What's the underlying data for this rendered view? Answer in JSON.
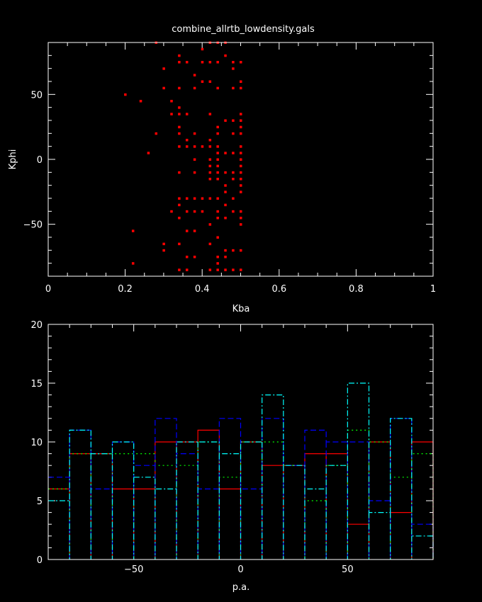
{
  "chart_data": [
    {
      "type": "scatter",
      "title": "combine_allrtb_lowdensity.gals",
      "xlabel": "Kba",
      "ylabel": "Kphi",
      "xlim": [
        0,
        1
      ],
      "ylim": [
        -90,
        90
      ],
      "xticks": [
        0,
        0.2,
        0.4,
        0.6,
        0.8,
        1
      ],
      "xtick_labels": [
        "0",
        "0.2",
        "0.4",
        "0.6",
        "0.8",
        "1"
      ],
      "yticks": [
        -50,
        0,
        50
      ],
      "ytick_labels": [
        "−50",
        "0",
        "50"
      ],
      "color": "#ff0000",
      "points": [
        [
          0.2,
          50
        ],
        [
          0.22,
          -55
        ],
        [
          0.22,
          -80
        ],
        [
          0.24,
          45
        ],
        [
          0.26,
          5
        ],
        [
          0.28,
          90
        ],
        [
          0.28,
          20
        ],
        [
          0.3,
          70
        ],
        [
          0.3,
          55
        ],
        [
          0.3,
          -65
        ],
        [
          0.3,
          -70
        ],
        [
          0.32,
          45
        ],
        [
          0.32,
          35
        ],
        [
          0.32,
          -40
        ],
        [
          0.34,
          80
        ],
        [
          0.34,
          75
        ],
        [
          0.34,
          55
        ],
        [
          0.34,
          40
        ],
        [
          0.34,
          35
        ],
        [
          0.34,
          25
        ],
        [
          0.34,
          20
        ],
        [
          0.34,
          10
        ],
        [
          0.34,
          -10
        ],
        [
          0.34,
          -30
        ],
        [
          0.34,
          -35
        ],
        [
          0.34,
          -45
        ],
        [
          0.34,
          -65
        ],
        [
          0.34,
          -85
        ],
        [
          0.36,
          75
        ],
        [
          0.36,
          35
        ],
        [
          0.36,
          15
        ],
        [
          0.36,
          10
        ],
        [
          0.36,
          -30
        ],
        [
          0.36,
          -40
        ],
        [
          0.36,
          -55
        ],
        [
          0.36,
          -75
        ],
        [
          0.36,
          -85
        ],
        [
          0.38,
          65
        ],
        [
          0.38,
          55
        ],
        [
          0.38,
          20
        ],
        [
          0.38,
          10
        ],
        [
          0.38,
          0
        ],
        [
          0.38,
          -10
        ],
        [
          0.38,
          -30
        ],
        [
          0.38,
          -40
        ],
        [
          0.38,
          -55
        ],
        [
          0.38,
          -75
        ],
        [
          0.4,
          85
        ],
        [
          0.4,
          75
        ],
        [
          0.4,
          60
        ],
        [
          0.4,
          10
        ],
        [
          0.4,
          -30
        ],
        [
          0.4,
          -40
        ],
        [
          0.42,
          90
        ],
        [
          0.42,
          75
        ],
        [
          0.42,
          60
        ],
        [
          0.42,
          35
        ],
        [
          0.42,
          15
        ],
        [
          0.42,
          10
        ],
        [
          0.42,
          0
        ],
        [
          0.42,
          -5
        ],
        [
          0.42,
          -10
        ],
        [
          0.42,
          -15
        ],
        [
          0.42,
          -30
        ],
        [
          0.42,
          -50
        ],
        [
          0.42,
          -65
        ],
        [
          0.42,
          -85
        ],
        [
          0.44,
          90
        ],
        [
          0.44,
          75
        ],
        [
          0.44,
          55
        ],
        [
          0.44,
          25
        ],
        [
          0.44,
          20
        ],
        [
          0.44,
          10
        ],
        [
          0.44,
          5
        ],
        [
          0.44,
          0
        ],
        [
          0.44,
          -5
        ],
        [
          0.44,
          -10
        ],
        [
          0.44,
          -15
        ],
        [
          0.44,
          -30
        ],
        [
          0.44,
          -40
        ],
        [
          0.44,
          -45
        ],
        [
          0.44,
          -60
        ],
        [
          0.44,
          -75
        ],
        [
          0.44,
          -80
        ],
        [
          0.44,
          -85
        ],
        [
          0.46,
          90
        ],
        [
          0.46,
          80
        ],
        [
          0.46,
          30
        ],
        [
          0.46,
          5
        ],
        [
          0.46,
          -10
        ],
        [
          0.46,
          -20
        ],
        [
          0.46,
          -25
        ],
        [
          0.46,
          -35
        ],
        [
          0.46,
          -45
        ],
        [
          0.46,
          -70
        ],
        [
          0.46,
          -75
        ],
        [
          0.46,
          -85
        ],
        [
          0.48,
          75
        ],
        [
          0.48,
          70
        ],
        [
          0.48,
          55
        ],
        [
          0.48,
          30
        ],
        [
          0.48,
          20
        ],
        [
          0.48,
          5
        ],
        [
          0.48,
          -10
        ],
        [
          0.48,
          -15
        ],
        [
          0.48,
          -30
        ],
        [
          0.48,
          -40
        ],
        [
          0.48,
          -70
        ],
        [
          0.48,
          -85
        ],
        [
          0.5,
          75
        ],
        [
          0.5,
          60
        ],
        [
          0.5,
          55
        ],
        [
          0.5,
          35
        ],
        [
          0.5,
          30
        ],
        [
          0.5,
          25
        ],
        [
          0.5,
          20
        ],
        [
          0.5,
          10
        ],
        [
          0.5,
          5
        ],
        [
          0.5,
          0
        ],
        [
          0.5,
          -5
        ],
        [
          0.5,
          -10
        ],
        [
          0.5,
          -15
        ],
        [
          0.5,
          -20
        ],
        [
          0.5,
          -25
        ],
        [
          0.5,
          -40
        ],
        [
          0.5,
          -45
        ],
        [
          0.5,
          -50
        ],
        [
          0.5,
          -70
        ],
        [
          0.5,
          -85
        ]
      ]
    },
    {
      "type": "histogram",
      "xlabel": "p.a.",
      "ylabel": "",
      "xlim": [
        -90,
        90
      ],
      "ylim": [
        0,
        20
      ],
      "xticks": [
        -50,
        0,
        50
      ],
      "xtick_labels": [
        "−50",
        "0",
        "50"
      ],
      "yticks": [
        0,
        5,
        10,
        15,
        20
      ],
      "ytick_labels": [
        "0",
        "5",
        "10",
        "15",
        "20"
      ],
      "bin_edges": [
        -90,
        -80,
        -70,
        -60,
        -50,
        -40,
        -30,
        -20,
        -10,
        0,
        10,
        20,
        30,
        40,
        50,
        60,
        70,
        80,
        90
      ],
      "series": [
        {
          "color": "#ff0000",
          "dash": "",
          "values": [
            6,
            9,
            9,
            6,
            6,
            10,
            10,
            11,
            6,
            10,
            8,
            8,
            9,
            9,
            3,
            10,
            4,
            10
          ]
        },
        {
          "color": "#00ff00",
          "dash": "2,4",
          "values": [
            6,
            9,
            9,
            9,
            9,
            8,
            8,
            10,
            7,
            10,
            10,
            8,
            5,
            8,
            11,
            10,
            7,
            9
          ]
        },
        {
          "color": "#0000ff",
          "dash": "8,4",
          "values": [
            7,
            11,
            6,
            10,
            8,
            12,
            9,
            6,
            12,
            6,
            12,
            8,
            11,
            10,
            10,
            5,
            12,
            3
          ]
        },
        {
          "color": "#00ffff",
          "dash": "8,3,2,3",
          "values": [
            5,
            11,
            9,
            10,
            7,
            6,
            10,
            10,
            9,
            10,
            14,
            8,
            6,
            8,
            15,
            4,
            12,
            2
          ]
        }
      ]
    }
  ]
}
